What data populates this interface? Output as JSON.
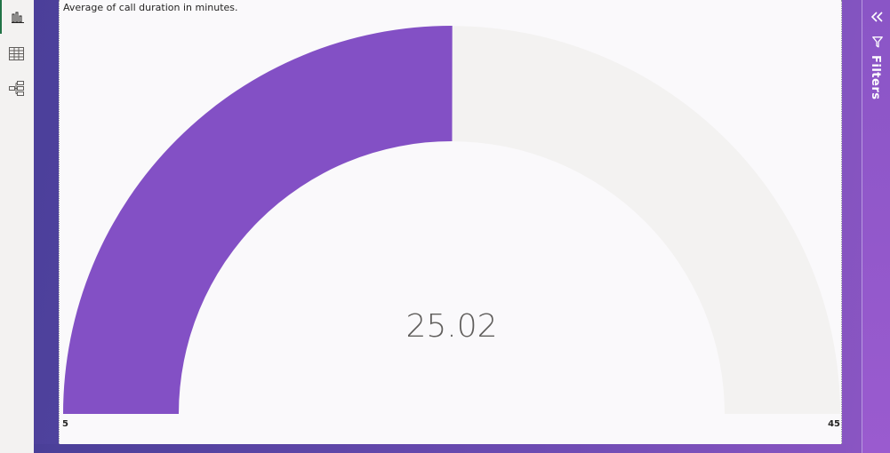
{
  "left_rail": {
    "items": [
      {
        "icon": "report-view-icon",
        "active": true
      },
      {
        "icon": "table-view-icon",
        "active": false
      },
      {
        "icon": "model-view-icon",
        "active": false
      }
    ]
  },
  "visual": {
    "title": "Average of call duration in minutes."
  },
  "filters_pane": {
    "label": "Filters",
    "collapse_icon": "double-chevron-left-icon",
    "filter_icon": "funnel-icon"
  },
  "colors": {
    "accent": "#8350c5",
    "track": "#f3f2f1",
    "canvas_start": "#4b3f9a",
    "canvas_end": "#8a55c2"
  },
  "chart_data": {
    "type": "gauge",
    "title": "Average of call duration in minutes.",
    "value": 25.02,
    "value_label": "25.02",
    "min": 5,
    "max": 45,
    "min_label": "5",
    "max_label": "45"
  }
}
